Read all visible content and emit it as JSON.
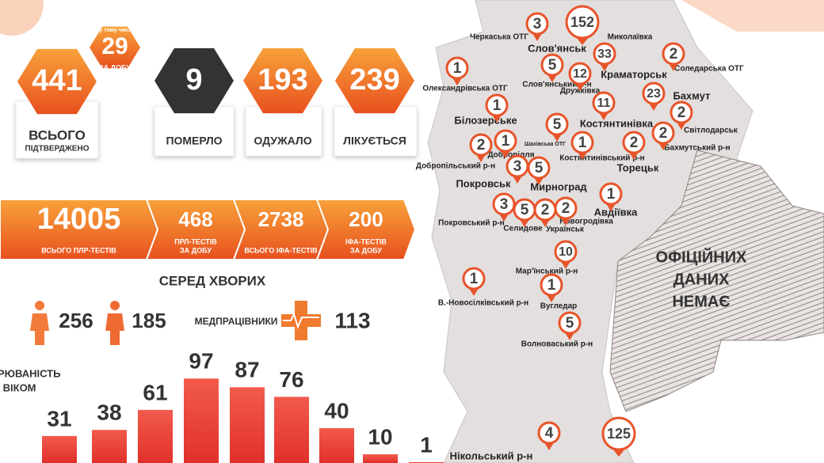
{
  "summary": {
    "confirmed": {
      "value": 441,
      "label": "ВСЬОГО",
      "sublabel": "ПІДТВЕРДЖЕНО"
    },
    "daily": {
      "note": "у тому числі",
      "value": 29,
      "label": "ЗА ДОБУ"
    },
    "deaths": {
      "value": 9,
      "label": "ПОМЕРЛО"
    },
    "recovered": {
      "value": 193,
      "label": "ОДУЖАЛО"
    },
    "treated": {
      "value": 239,
      "label": "ЛІКУЄТЬСЯ"
    }
  },
  "tests": [
    {
      "value": 14005,
      "label": [
        "ВСЬОГО ПЛР-ТЕСТІВ"
      ]
    },
    {
      "value": 468,
      "label": [
        "ПРЛ-ТЕСТІВ",
        "ЗА ДОБУ"
      ]
    },
    {
      "value": 2738,
      "label": [
        "ВСЬОГО ІФА-ТЕСТІВ"
      ]
    },
    {
      "value": 200,
      "label": [
        "ІФА-ТЕСТІВ",
        "ЗА ДОБУ"
      ]
    }
  ],
  "patients": {
    "title": "СЕРЕД ХВОРИХ",
    "women": 256,
    "men": 185,
    "medics_label": "МЕДПРАЦІВНИКИ",
    "medics": 113
  },
  "age": {
    "title": [
      "ЗАХВОРЮВАНІСТЬ",
      "ЗА ВІКОМ"
    ],
    "values": [
      31,
      38,
      61,
      97,
      87,
      76,
      40,
      10,
      1
    ]
  },
  "map": {
    "markers": [
      3,
      152,
      33,
      2,
      1,
      5,
      12,
      23,
      1,
      11,
      2,
      5,
      2,
      1,
      2,
      1,
      2,
      3,
      5,
      1,
      3,
      5,
      2,
      2,
      10,
      1,
      1,
      5,
      4,
      125
    ],
    "places": [
      "Черкаська ОТГ",
      "Слов'янськ",
      "Миколаївка",
      "Соледарська ОТГ",
      "Олександрівська ОТГ",
      "Слов'янський р-н",
      "Краматорськ",
      "Дружківка",
      "Бахмут",
      "Білозерське",
      "Світлодарськ",
      "Костянтинівка",
      "Бахмутський р-н",
      "Шахівська ОТГ",
      "Добропілля",
      "Добропільський р-н",
      "Костянтинівський р-н",
      "Торецьк",
      "Покровськ",
      "Мирноград",
      "Авдіївка",
      "Покровський р-н",
      "Селидове",
      "Новогродівка",
      "Українськ",
      "Мар'їнський р-н",
      "В.-Новосілківський р-н",
      "Вугледар",
      "Волноваський р-н",
      "Нікольський р-н"
    ],
    "no_data": [
      "ОФІЦІЙНИХ",
      "ДАНИХ",
      "НЕМАЄ"
    ]
  }
}
